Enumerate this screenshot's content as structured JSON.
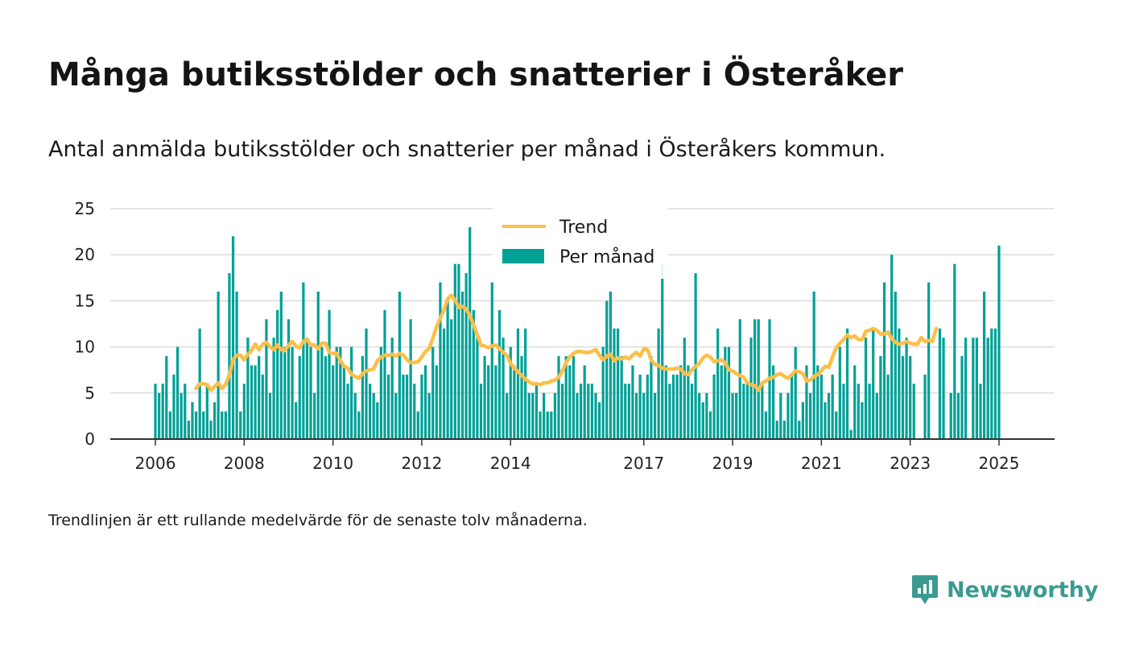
{
  "title": "Många butiksstölder och snatterier i Österåker",
  "subtitle": "Antal anmälda butiksstölder och snatterier per månad i Österåkers kommun.",
  "note": "Trendlinjen är ett rullande medelvärde för de senaste tolv månaderna.",
  "brand": {
    "name": "Newsworthy",
    "icon": "newsworthy-logo-icon",
    "color": "#3a9a91"
  },
  "colors": {
    "bar": "#00a096",
    "trend": "#fcbf49",
    "grid": "#dcdcdc",
    "axis": "#333333"
  },
  "chart_data": {
    "type": "bar",
    "grid": true,
    "legend_position": "top-center",
    "ylim": [
      0,
      25
    ],
    "y_ticks": [
      0,
      5,
      10,
      15,
      20,
      25
    ],
    "x_ticks": [
      "2006",
      "2008",
      "2010",
      "2012",
      "2014",
      "2017",
      "2019",
      "2021",
      "2023",
      "2025"
    ],
    "start_month": "2006-01",
    "series": [
      {
        "name": "Per månad",
        "type": "bar",
        "values": [
          6,
          5,
          6,
          9,
          3,
          7,
          10,
          5,
          6,
          2,
          4,
          3,
          12,
          3,
          6,
          2,
          4,
          16,
          3,
          3,
          18,
          22,
          16,
          3,
          6,
          11,
          8,
          8,
          9,
          7,
          13,
          5,
          11,
          14,
          16,
          10,
          13,
          10,
          4,
          9,
          17,
          11,
          10,
          5,
          16,
          10,
          9,
          14,
          8,
          10,
          10,
          8,
          6,
          10,
          5,
          3,
          9,
          12,
          6,
          5,
          4,
          10,
          14,
          7,
          11,
          5,
          16,
          7,
          7,
          13,
          6,
          3,
          7,
          8,
          5,
          10,
          8,
          17,
          12,
          15,
          13,
          19,
          19,
          16,
          18,
          23,
          14,
          11,
          6,
          9,
          8,
          17,
          8,
          14,
          11,
          5,
          10,
          8,
          12,
          9,
          12,
          5,
          5,
          6,
          3,
          5,
          3,
          3,
          5,
          9,
          6,
          9,
          8,
          9,
          5,
          6,
          8,
          6,
          6,
          5,
          4,
          10,
          15,
          16,
          12,
          12,
          9,
          6,
          6,
          8,
          5,
          7,
          5,
          7,
          9,
          5,
          12,
          19,
          8,
          6,
          7,
          7,
          8,
          11,
          8,
          6,
          18,
          5,
          4,
          5,
          3,
          7,
          12,
          8,
          10,
          10,
          5,
          5,
          13,
          6,
          6,
          11,
          13,
          13,
          6,
          3,
          13,
          8,
          2,
          5,
          2,
          5,
          7,
          10,
          2,
          4,
          8,
          5,
          16,
          8,
          7,
          4,
          5,
          7,
          3,
          10,
          6,
          12,
          1,
          8,
          6,
          4,
          11,
          6,
          12,
          5,
          9,
          17,
          7,
          20,
          16,
          12,
          9,
          11,
          9,
          6,
          0,
          0,
          7,
          17,
          0,
          0,
          12,
          11,
          0,
          5,
          19,
          5,
          9,
          11,
          0,
          11,
          11,
          6,
          16,
          11,
          12,
          12,
          21
        ]
      },
      {
        "name": "Trend",
        "type": "line",
        "start_month": "2006-12",
        "values": [
          5.5,
          6.0,
          6.0,
          5.9,
          5.3,
          5.7,
          6.1,
          5.5,
          5.9,
          7.0,
          8.6,
          9.1,
          9.1,
          8.6,
          9.2,
          9.6,
          10.3,
          9.7,
          10.3,
          10.5,
          10.0,
          9.7,
          10.2,
          9.7,
          9.6,
          10.2,
          10.6,
          10.1,
          9.9,
          10.6,
          10.8,
          10.2,
          10.2,
          9.8,
          10.4,
          10.4,
          9.4,
          9.3,
          9.3,
          8.5,
          7.9,
          7.7,
          7.0,
          6.8,
          6.6,
          7.1,
          7.4,
          7.5,
          7.6,
          8.5,
          8.9,
          9.1,
          9.1,
          9.2,
          9.0,
          9.3,
          9.1,
          8.6,
          8.3,
          8.3,
          8.4,
          8.9,
          9.5,
          9.8,
          11.0,
          12.2,
          13.1,
          14.0,
          15.2,
          15.6,
          15.1,
          14.3,
          14.4,
          14.1,
          13.4,
          12.4,
          11.3,
          10.2,
          10.1,
          9.9,
          10.1,
          10.2,
          9.8,
          9.4,
          9.1,
          8.2,
          7.7,
          7.3,
          6.9,
          6.5,
          6.2,
          6.0,
          6.0,
          5.9,
          6.1,
          6.1,
          6.3,
          6.4,
          6.7,
          7.4,
          8.3,
          8.9,
          9.3,
          9.5,
          9.5,
          9.4,
          9.4,
          9.5,
          9.7,
          9.1,
          8.6,
          9.0,
          9.2,
          8.5,
          8.8,
          8.7,
          8.9,
          8.7,
          9.1,
          9.4,
          9.0,
          9.8,
          9.7,
          8.6,
          8.1,
          8.0,
          7.7,
          7.6,
          7.6,
          7.6,
          7.7,
          7.6,
          7.1,
          7.0,
          7.5,
          7.9,
          8.2,
          8.8,
          9.1,
          8.9,
          8.4,
          8.5,
          8.6,
          8.3,
          7.5,
          7.4,
          7.1,
          6.9,
          6.7,
          6.1,
          5.9,
          5.8,
          5.3,
          6.1,
          6.3,
          6.6,
          6.7,
          7.0,
          7.1,
          6.8,
          6.6,
          7.0,
          7.4,
          7.3,
          7.1,
          6.3,
          6.4,
          6.8,
          7.0,
          7.4,
          7.9,
          7.8,
          8.9,
          9.9,
          10.4,
          10.8,
          11.3,
          11.0,
          11.2,
          10.8,
          10.8,
          11.7,
          11.8,
          12.0,
          11.8,
          11.4,
          11.4,
          11.6,
          10.9,
          10.5,
          10.3,
          10.4,
          10.6,
          10.4,
          10.3,
          10.3,
          11.0,
          10.6,
          10.7,
          10.6,
          12.0
        ]
      }
    ]
  }
}
